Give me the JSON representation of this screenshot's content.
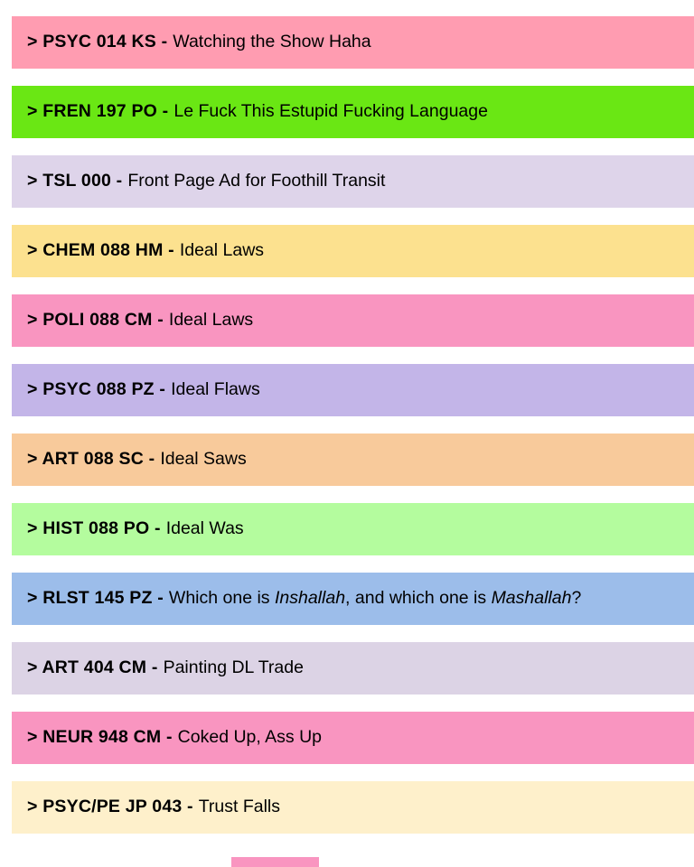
{
  "page": {
    "background": "#ffffff",
    "text_color": "#000000"
  },
  "course_list": {
    "rows": [
      {
        "code": "> PSYC 014 KS -",
        "bg": "#ff9cb1",
        "title_parts": [
          {
            "text": "Watching the Show Haha",
            "italic": false
          }
        ]
      },
      {
        "code": "> FREN 197 PO -",
        "bg": "#6ae714",
        "title_parts": [
          {
            "text": "Le Fuck This Estupid Fucking Language",
            "italic": false
          }
        ]
      },
      {
        "code": "> TSL 000 -",
        "bg": "#ded4ea",
        "title_parts": [
          {
            "text": "Front Page Ad for Foothill Transit",
            "italic": false
          }
        ]
      },
      {
        "code": "> CHEM 088 HM -",
        "bg": "#fce18f",
        "title_parts": [
          {
            "text": "Ideal Laws",
            "italic": false
          }
        ]
      },
      {
        "code": "> POLI 088 CM -",
        "bg": "#f995c0",
        "title_parts": [
          {
            "text": "Ideal Laws",
            "italic": false
          }
        ]
      },
      {
        "code": "> PSYC 088 PZ -",
        "bg": "#c3b5e8",
        "title_parts": [
          {
            "text": "Ideal Flaws",
            "italic": false
          }
        ]
      },
      {
        "code": "> ART 088 SC -",
        "bg": "#f8ca9b",
        "title_parts": [
          {
            "text": "Ideal Saws",
            "italic": false
          }
        ]
      },
      {
        "code": "> HIST 088 PO -",
        "bg": "#b4fc9e",
        "title_parts": [
          {
            "text": "Ideal Was",
            "italic": false
          }
        ]
      },
      {
        "code": "> RLST 145 PZ -",
        "bg": "#9cbdea",
        "title_parts": [
          {
            "text": "Which one is ",
            "italic": false
          },
          {
            "text": "Inshallah",
            "italic": true
          },
          {
            "text": ", and which one is ",
            "italic": false
          },
          {
            "text": "Mashallah",
            "italic": true
          },
          {
            "text": "?",
            "italic": false
          }
        ]
      },
      {
        "code": "> ART 404 CM -",
        "bg": "#dcd3e5",
        "title_parts": [
          {
            "text": "Painting DL Trade",
            "italic": false
          }
        ]
      },
      {
        "code": "> NEUR 948 CM -",
        "bg": "#f995c0",
        "title_parts": [
          {
            "text": "Coked Up, Ass Up",
            "italic": false
          }
        ]
      },
      {
        "code": "> PSYC/PE JP 043 -",
        "bg": "#fef0cb",
        "title_parts": [
          {
            "text": "Trust Falls",
            "italic": false
          }
        ]
      }
    ]
  },
  "partial_next_row_fragment": {
    "color": "#f995c0"
  }
}
